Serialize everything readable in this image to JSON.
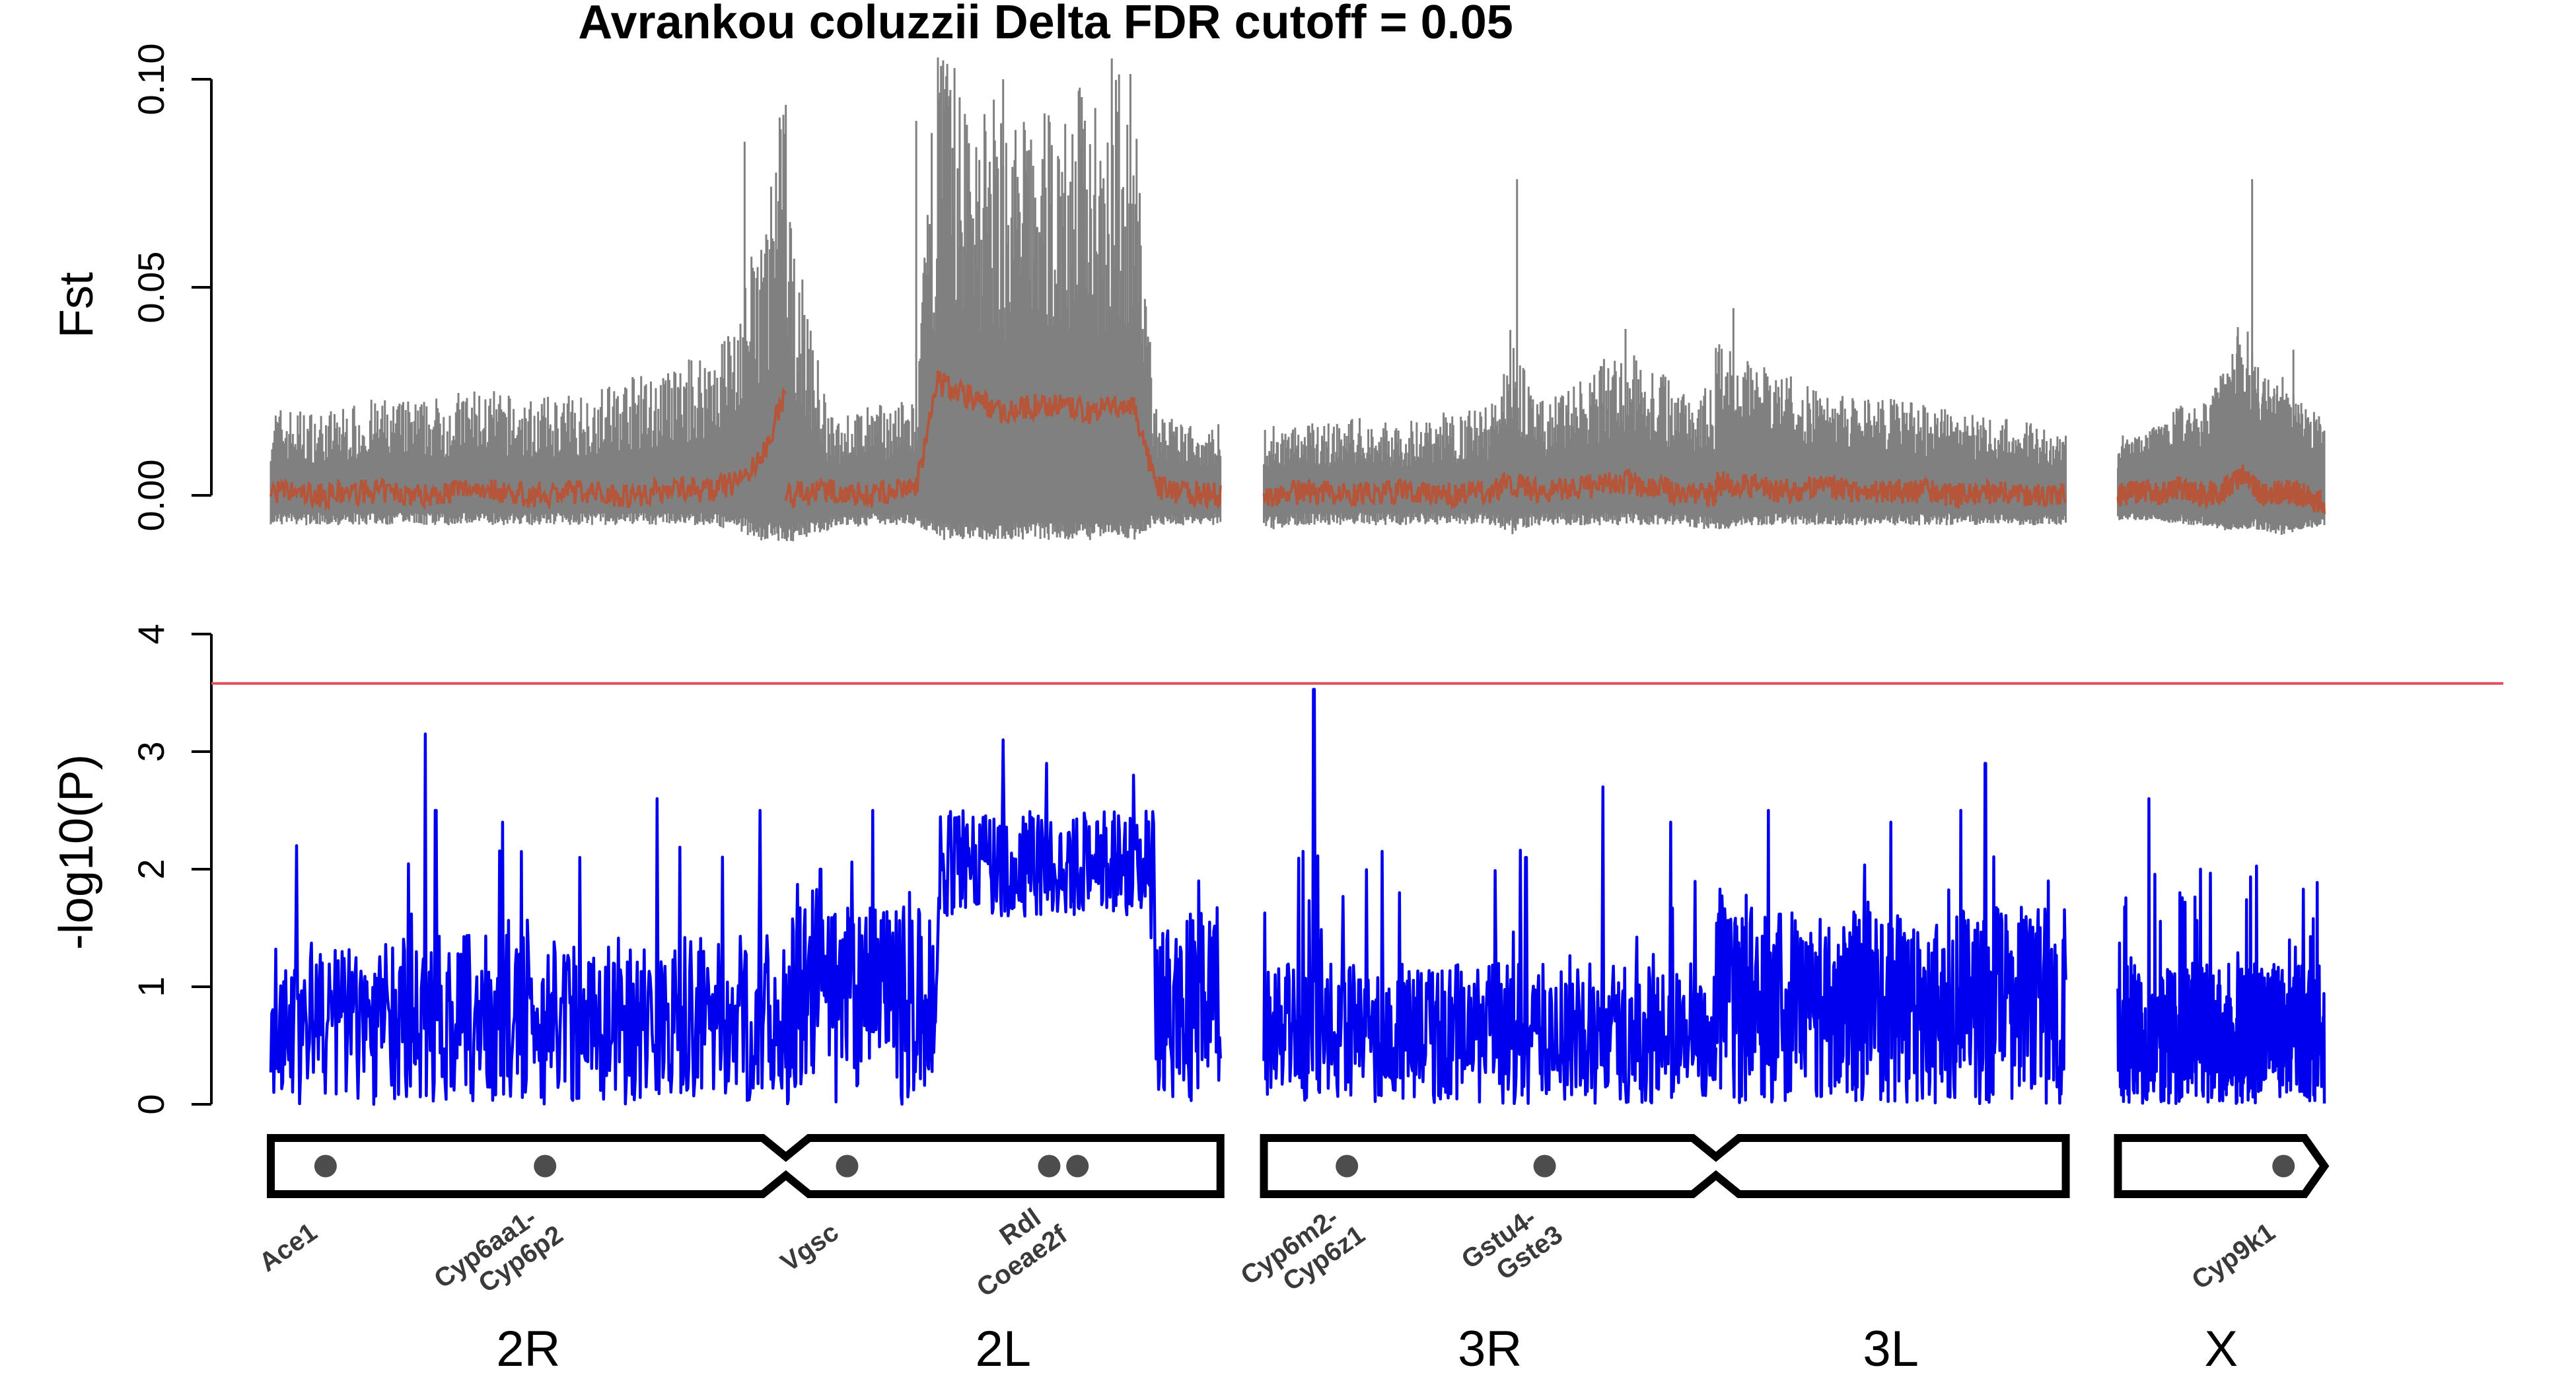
{
  "chart_data": [
    {
      "type": "line",
      "title": "Avrankou coluzzii Delta FDR cutoff = 0.05",
      "ylabel": "Fst",
      "ylim": [
        -0.01,
        0.105
      ],
      "yticks": [
        "0.00",
        "0.05",
        "0.10"
      ],
      "colors": {
        "band": "#808080",
        "mean": "#b5563a"
      },
      "series": [
        {
          "values_note": "band",
          "arms": [
            {
              "arm": "2R",
              "x": [
                0,
                0.1,
                0.2,
                0.3,
                0.4,
                0.5,
                0.6,
                0.7,
                0.75,
                0.8,
                0.85,
                0.9,
                0.95,
                1.0
              ],
              "band_low": [
                -0.006,
                -0.006,
                -0.006,
                -0.006,
                -0.006,
                -0.006,
                -0.006,
                -0.006,
                -0.006,
                -0.006,
                -0.006,
                -0.007,
                -0.009,
                -0.01
              ],
              "band_high": [
                0.015,
                0.014,
                0.016,
                0.016,
                0.018,
                0.016,
                0.017,
                0.02,
                0.02,
                0.022,
                0.025,
                0.03,
                0.045,
                0.07
              ],
              "mean": [
                0.001,
                0.0,
                0.001,
                0.0,
                0.002,
                0.0,
                0.001,
                0.0,
                0.001,
                0.002,
                0.001,
                0.003,
                0.008,
                0.025
              ]
            },
            {
              "arm": "2L",
              "x": [
                0,
                0.1,
                0.2,
                0.3,
                0.35,
                0.4,
                0.5,
                0.6,
                0.7,
                0.8,
                0.85,
                0.9,
                1.0
              ],
              "band_low": [
                -0.01,
                -0.007,
                -0.006,
                -0.006,
                -0.009,
                -0.009,
                -0.009,
                -0.009,
                -0.009,
                -0.009,
                -0.006,
                -0.006,
                -0.006
              ],
              "band_high": [
                0.05,
                0.013,
                0.015,
                0.016,
                0.08,
                0.07,
                0.065,
                0.065,
                0.07,
                0.07,
                0.015,
                0.012,
                0.012
              ],
              "mean": [
                0.0,
                0.001,
                0.0,
                0.002,
                0.027,
                0.025,
                0.02,
                0.022,
                0.02,
                0.022,
                0.002,
                0.001,
                0.0
              ]
            },
            {
              "arm": "3R",
              "x": [
                0,
                0.1,
                0.2,
                0.3,
                0.4,
                0.5,
                0.55,
                0.6,
                0.7,
                0.8,
                0.9,
                1.0
              ],
              "band_low": [
                -0.007,
                -0.006,
                -0.006,
                -0.006,
                -0.006,
                -0.006,
                -0.008,
                -0.006,
                -0.006,
                -0.006,
                -0.006,
                -0.007
              ],
              "band_high": [
                0.012,
                0.012,
                0.013,
                0.012,
                0.014,
                0.015,
                0.03,
                0.015,
                0.02,
                0.025,
                0.02,
                0.018
              ],
              "mean": [
                0.0,
                0.001,
                0.0,
                0.001,
                0.0,
                0.001,
                0.003,
                0.001,
                0.002,
                0.003,
                0.001,
                0.0
              ]
            },
            {
              "arm": "3L",
              "x": [
                0,
                0.1,
                0.2,
                0.3,
                0.4,
                0.5,
                0.6,
                0.7,
                0.8,
                0.9,
                1.0
              ],
              "band_low": [
                -0.007,
                -0.006,
                -0.006,
                -0.006,
                -0.006,
                -0.006,
                -0.006,
                -0.006,
                -0.006,
                -0.006,
                -0.006
              ],
              "band_high": [
                0.028,
                0.022,
                0.02,
                0.018,
                0.016,
                0.016,
                0.015,
                0.014,
                0.013,
                0.012,
                0.01
              ],
              "mean": [
                0.003,
                0.002,
                0.001,
                0.002,
                0.001,
                0.001,
                0.001,
                0.0,
                0.001,
                0.0,
                0.0
              ]
            },
            {
              "arm": "X",
              "x": [
                0,
                0.1,
                0.2,
                0.3,
                0.4,
                0.5,
                0.6,
                0.7,
                0.8,
                0.9,
                1.0
              ],
              "band_low": [
                -0.005,
                -0.005,
                -0.005,
                -0.006,
                -0.006,
                -0.007,
                -0.007,
                -0.007,
                -0.008,
                -0.007,
                -0.006
              ],
              "band_high": [
                0.01,
                0.01,
                0.012,
                0.015,
                0.015,
                0.02,
                0.03,
                0.02,
                0.02,
                0.015,
                0.013
              ],
              "mean": [
                0.0,
                0.001,
                0.0,
                0.002,
                0.0,
                0.001,
                0.005,
                0.0,
                0.001,
                0.0,
                -0.002
              ]
            }
          ]
        }
      ],
      "peaks": [
        {
          "arm": "2R",
          "x": 0.92,
          "y": 0.085
        },
        {
          "arm": "2R",
          "x": 0.99,
          "y": 0.088
        },
        {
          "arm": "2L",
          "x": 0.3,
          "y": 0.09
        },
        {
          "arm": "2L",
          "x": 0.5,
          "y": 0.1
        },
        {
          "arm": "2L",
          "x": 0.75,
          "y": 0.105
        },
        {
          "arm": "3R",
          "x": 0.56,
          "y": 0.076
        },
        {
          "arm": "3R",
          "x": 0.8,
          "y": 0.04
        },
        {
          "arm": "3L",
          "x": 0.05,
          "y": 0.045
        },
        {
          "arm": "X",
          "x": 0.65,
          "y": 0.076
        },
        {
          "arm": "X",
          "x": 0.85,
          "y": 0.035
        }
      ]
    },
    {
      "type": "line",
      "ylabel": "-log10(P)",
      "ylim": [
        0,
        4
      ],
      "yticks": [
        "0",
        "1",
        "2",
        "3",
        "4"
      ],
      "threshold": 3.58,
      "colors": {
        "line": "#0000ee",
        "threshold": "#e0505a"
      },
      "arms": [
        {
          "arm": "2R",
          "baseline": 0.6,
          "peaks": [
            {
              "x": 0.3,
              "y": 3.15
            },
            {
              "x": 0.32,
              "y": 2.5
            },
            {
              "x": 0.45,
              "y": 2.4
            },
            {
              "x": 0.75,
              "y": 2.6
            },
            {
              "x": 0.95,
              "y": 2.5
            },
            {
              "x": 0.05,
              "y": 2.2
            },
            {
              "x": 0.6,
              "y": 2.1
            }
          ]
        },
        {
          "arm": "2L",
          "baseline": 0.7,
          "peaks": [
            {
              "x": 0.08,
              "y": 2.0
            },
            {
              "x": 0.2,
              "y": 2.5
            },
            {
              "x": 0.5,
              "y": 3.1
            },
            {
              "x": 0.6,
              "y": 2.9
            },
            {
              "x": 0.8,
              "y": 2.8
            },
            {
              "x": 0.95,
              "y": 1.9
            }
          ]
        },
        {
          "arm": "3R",
          "baseline": 0.5,
          "peaks": [
            {
              "x": 0.11,
              "y": 3.53
            },
            {
              "x": 0.3,
              "y": 1.8
            },
            {
              "x": 0.58,
              "y": 2.1
            },
            {
              "x": 0.75,
              "y": 2.7
            },
            {
              "x": 0.9,
              "y": 2.4
            }
          ]
        },
        {
          "arm": "3L",
          "baseline": 0.7,
          "peaks": [
            {
              "x": 0.15,
              "y": 2.5
            },
            {
              "x": 0.5,
              "y": 2.4
            },
            {
              "x": 0.7,
              "y": 2.5
            },
            {
              "x": 0.77,
              "y": 2.9
            },
            {
              "x": 0.95,
              "y": 1.9
            }
          ]
        },
        {
          "arm": "X",
          "baseline": 0.5,
          "peaks": [
            {
              "x": 0.15,
              "y": 2.6
            },
            {
              "x": 0.3,
              "y": 1.8
            },
            {
              "x": 0.4,
              "y": 2.0
            },
            {
              "x": 0.85,
              "y": 0.95
            }
          ]
        }
      ]
    }
  ],
  "chromosomes": [
    {
      "label": "2R",
      "arm_start": 0,
      "arm_end": 0.237
    },
    {
      "label": "2L",
      "arm_start": 0.237,
      "arm_end": 0.437
    },
    {
      "label": "3R",
      "arm_start": 0.457,
      "arm_end": 0.665
    },
    {
      "label": "3L",
      "arm_start": 0.665,
      "arm_end": 0.826
    },
    {
      "label": "X",
      "arm_start": 0.85,
      "arm_end": 0.945
    }
  ],
  "genes": [
    {
      "label": "Ace1",
      "pos": 0.01
    },
    {
      "label": "Cyp6aa1-\nCyp6p2",
      "pos": 0.111
    },
    {
      "label": "Vgsc",
      "pos": 0.25
    },
    {
      "label": "Rdl\nCoeae2f",
      "pos": 0.343
    },
    {
      "label": "",
      "pos": 0.356
    },
    {
      "label": "Cyp6m2-\nCyp6z1",
      "pos": 0.48
    },
    {
      "label": "Gstu4-\nGste3",
      "pos": 0.571
    },
    {
      "label": "Cyp9k1",
      "pos": 0.911
    }
  ]
}
